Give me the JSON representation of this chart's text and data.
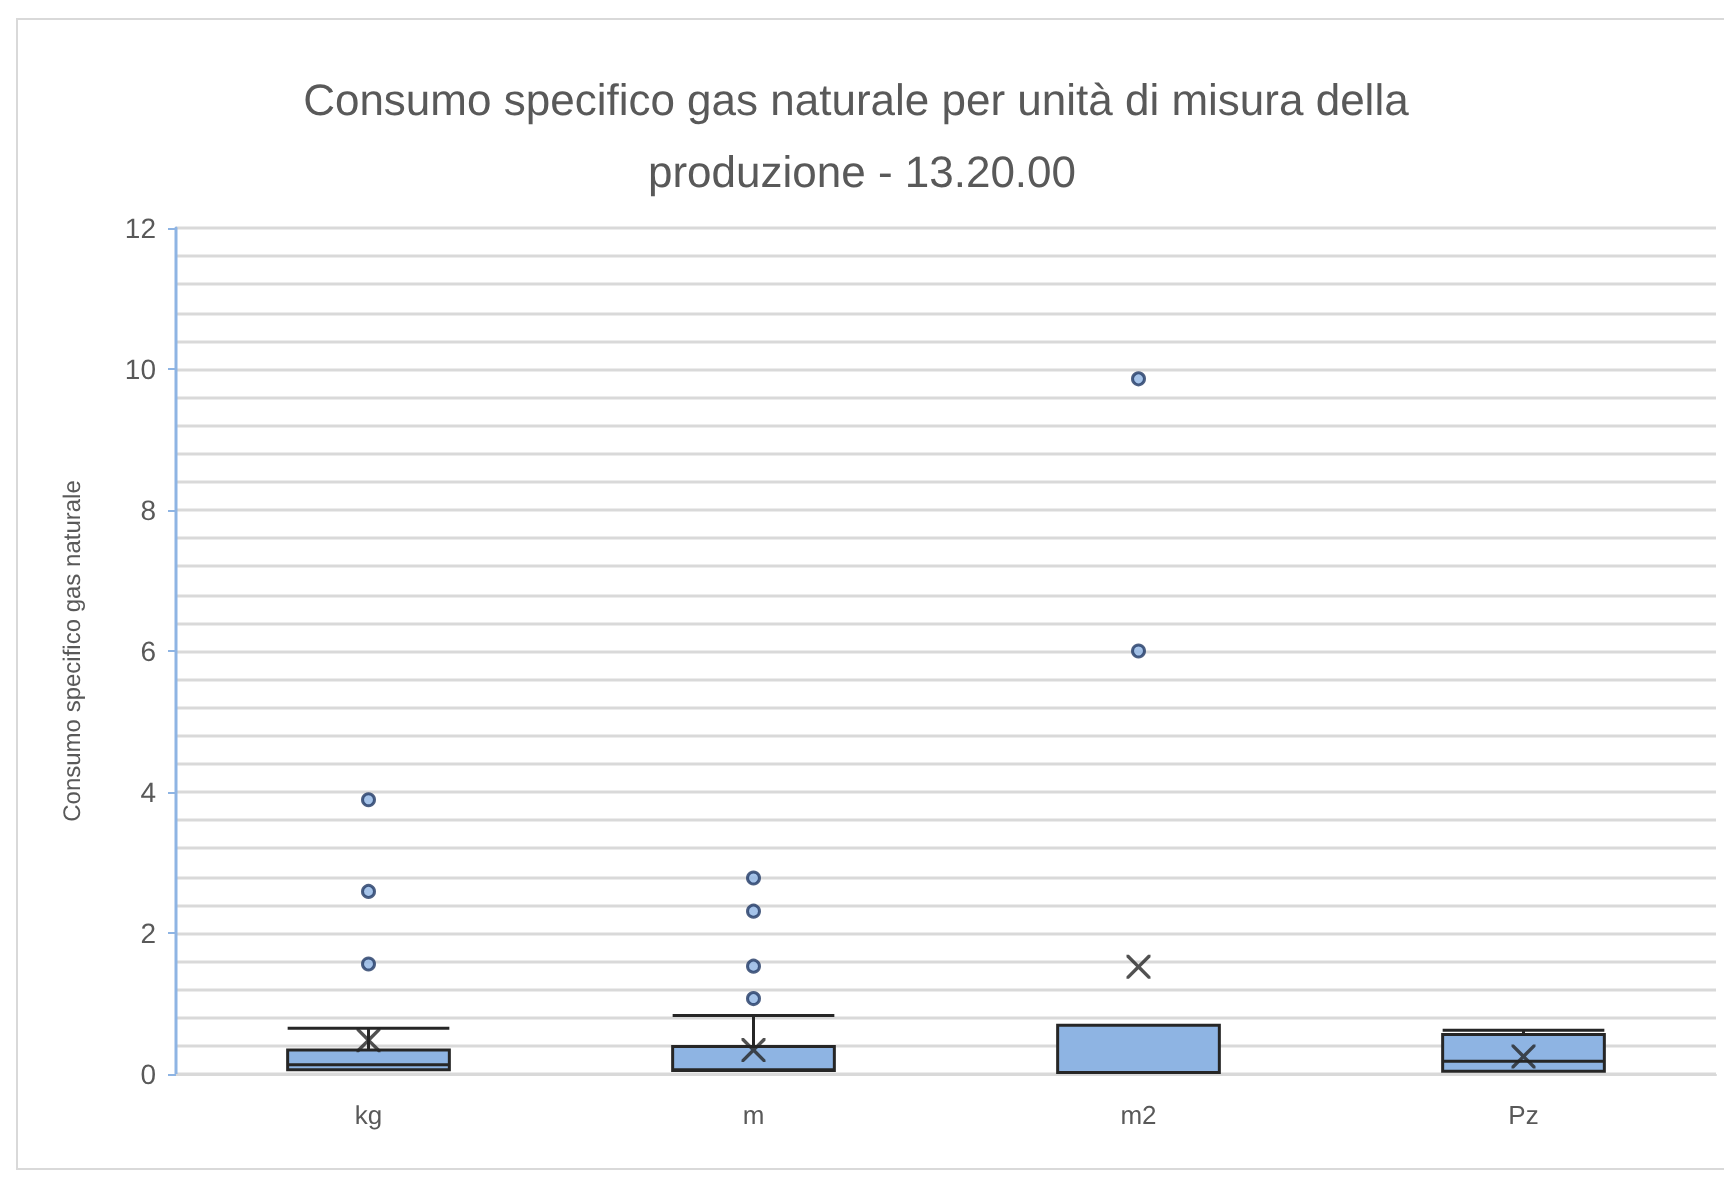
{
  "chart_data": {
    "type": "box",
    "title": "Consumo specifico gas naturale per unità di misura della produzione - 13.20.00",
    "ylabel": "Consumo specifico gas naturale",
    "categories": [
      "kg",
      "m",
      "m2",
      "Pz"
    ],
    "series": [
      {
        "color": "#8eb4e3",
        "boxes": [
          {
            "low": 0.06,
            "q1": 0.06,
            "median": 0.13,
            "q3": 0.34,
            "high": 0.65,
            "mean": 0.48,
            "outliers": [
              1.56,
              2.59,
              3.89
            ]
          },
          {
            "low": 0.05,
            "q1": 0.05,
            "median": 0.06,
            "q3": 0.39,
            "high": 0.83,
            "mean": 0.34,
            "outliers": [
              1.07,
              1.53,
              2.31,
              2.78
            ]
          },
          {
            "low": 0.02,
            "q1": 0.02,
            "median": 0.02,
            "q3": 0.69,
            "high": 0.69,
            "mean": 1.52,
            "outliers": [
              6.0,
              9.86
            ]
          },
          {
            "low": 0.04,
            "q1": 0.04,
            "median": 0.18,
            "q3": 0.56,
            "high": 0.62,
            "mean": 0.25
          }
        ]
      }
    ],
    "ylim": [
      0,
      12
    ],
    "yticks": [
      0,
      2,
      4,
      6,
      8,
      10,
      12
    ],
    "grid": "y"
  }
}
